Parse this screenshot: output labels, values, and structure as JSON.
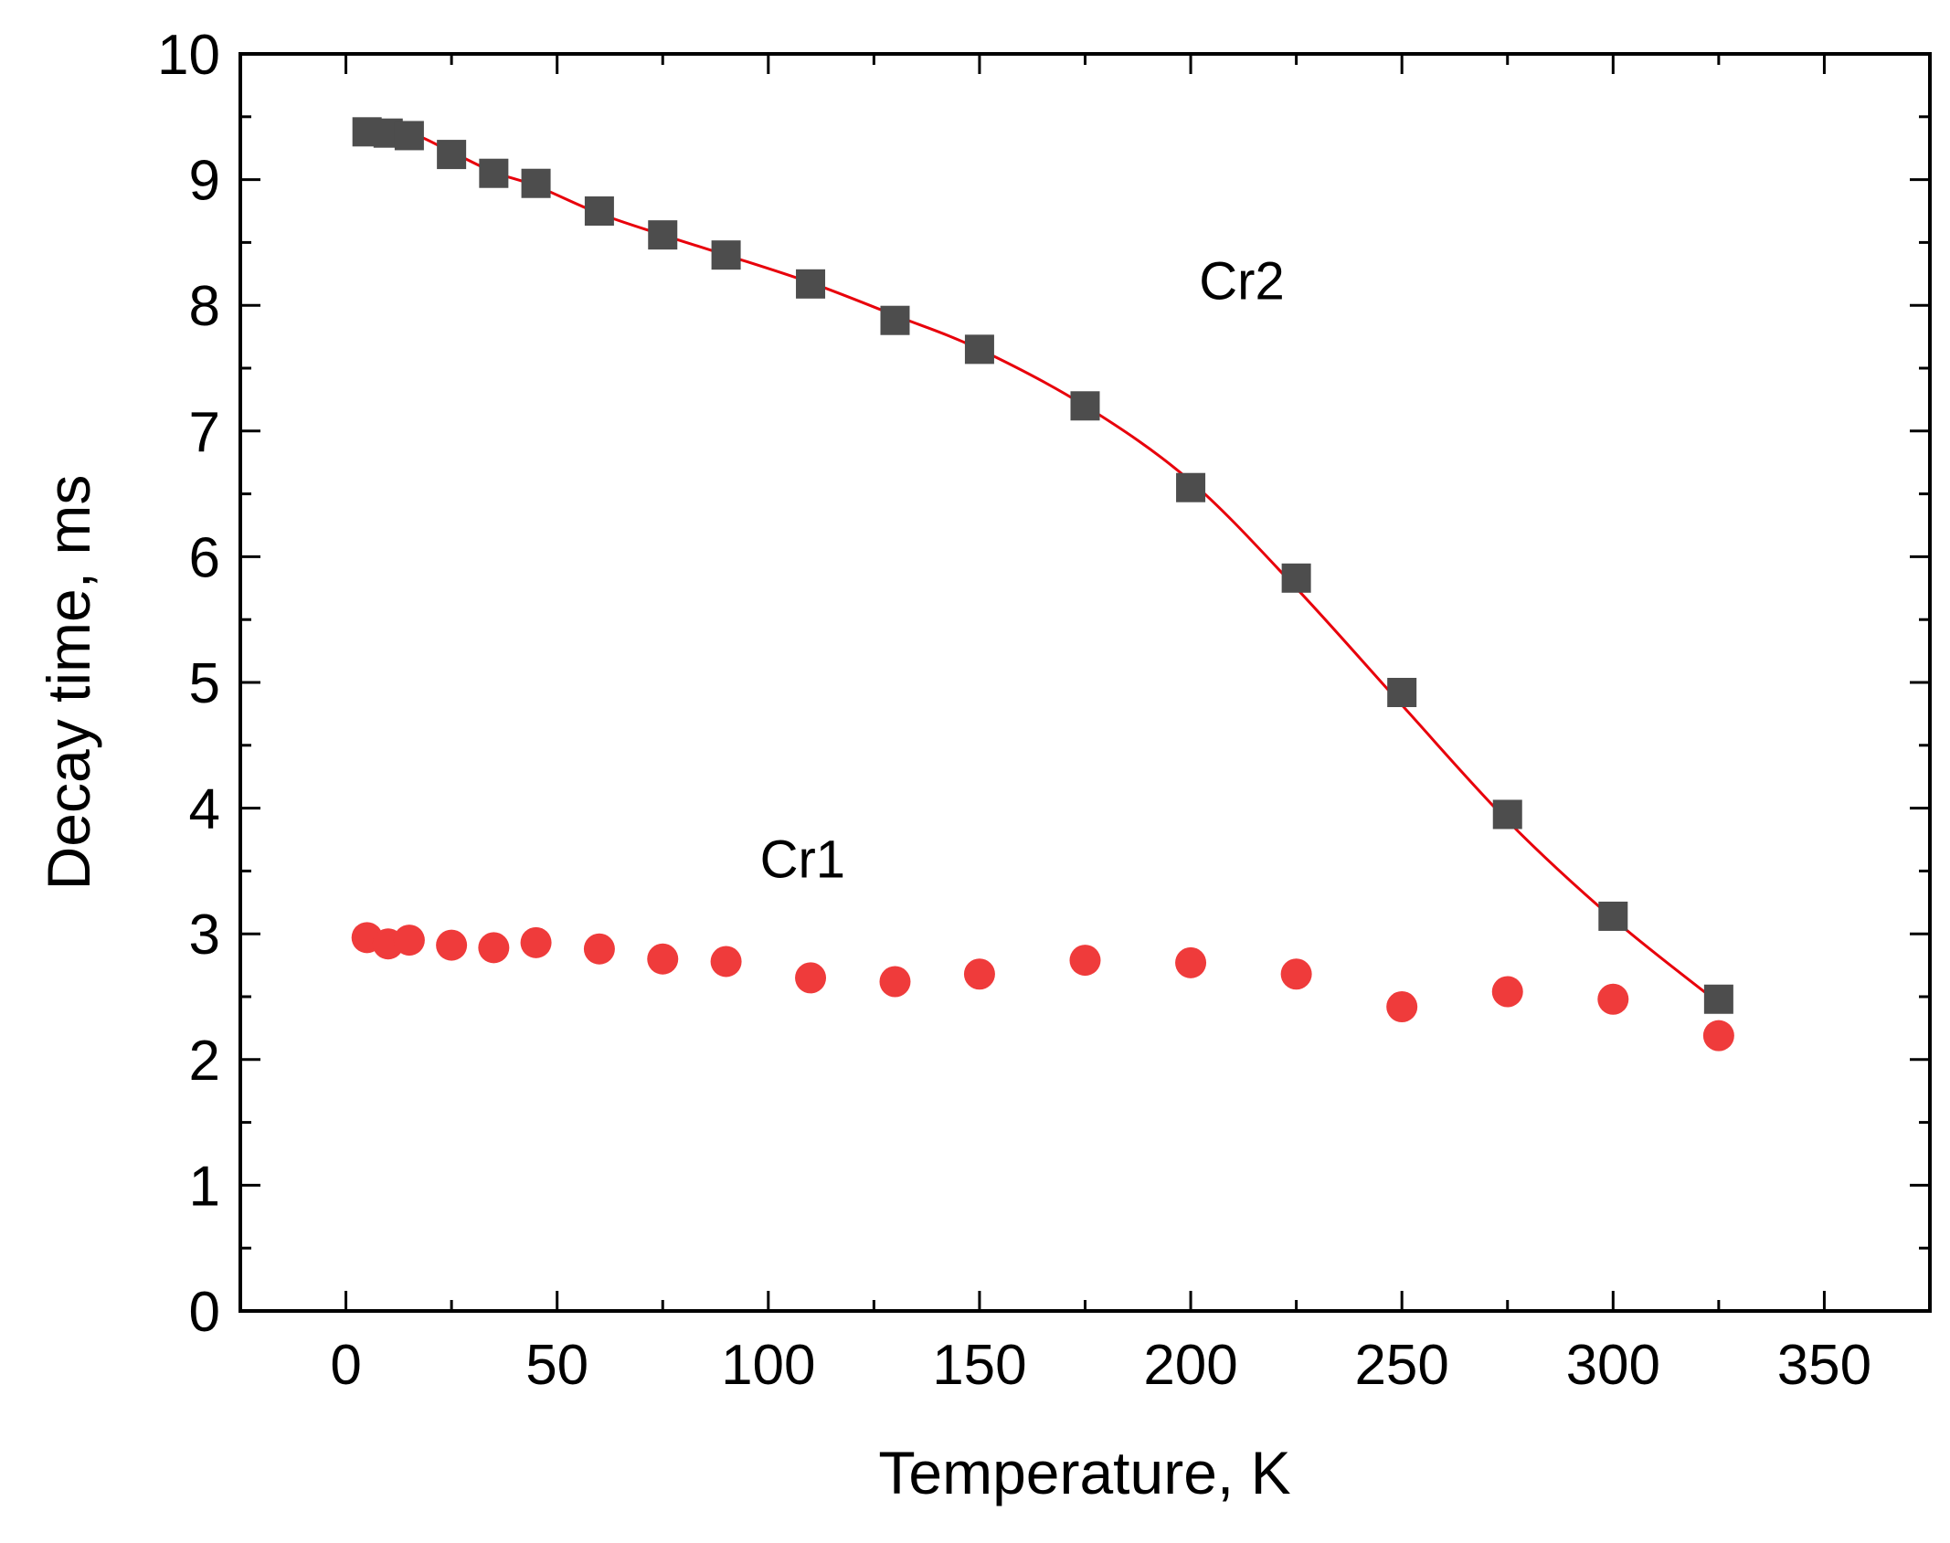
{
  "chart_data": {
    "type": "scatter",
    "title": "",
    "xlabel": "Temperature, K",
    "ylabel": "Decay time, ms",
    "xlim": [
      -25,
      375
    ],
    "ylim": [
      0,
      10
    ],
    "xticks": [
      0,
      50,
      100,
      150,
      200,
      250,
      300,
      350
    ],
    "yticks": [
      0,
      1,
      2,
      3,
      4,
      5,
      6,
      7,
      8,
      9,
      10
    ],
    "series": [
      {
        "name": "Cr2",
        "marker": "square",
        "color": "#4d4d4d",
        "x": [
          5,
          10,
          15,
          25,
          35,
          45,
          60,
          75,
          90,
          110,
          130,
          150,
          175,
          200,
          225,
          250,
          275,
          300,
          325
        ],
        "y": [
          9.38,
          9.37,
          9.35,
          9.2,
          9.05,
          8.97,
          8.75,
          8.56,
          8.4,
          8.17,
          7.88,
          7.65,
          7.2,
          6.55,
          5.83,
          4.92,
          3.95,
          3.14,
          2.48
        ]
      },
      {
        "name": "Cr2 fit",
        "marker": "line",
        "color": "#e8000b",
        "x": [
          5,
          15,
          25,
          35,
          45,
          60,
          75,
          90,
          110,
          130,
          150,
          175,
          200,
          225,
          250,
          275,
          300,
          325
        ],
        "y": [
          9.38,
          9.37,
          9.22,
          9.06,
          8.95,
          8.73,
          8.56,
          8.4,
          8.18,
          7.92,
          7.65,
          7.2,
          6.6,
          5.75,
          4.82,
          3.9,
          3.12,
          2.45
        ]
      },
      {
        "name": "Cr1",
        "marker": "circle",
        "color": "#ef3b3b",
        "x": [
          5,
          10,
          15,
          25,
          35,
          45,
          60,
          75,
          90,
          110,
          130,
          150,
          175,
          200,
          225,
          250,
          275,
          300,
          325
        ],
        "y": [
          2.97,
          2.92,
          2.95,
          2.91,
          2.89,
          2.93,
          2.88,
          2.8,
          2.78,
          2.65,
          2.62,
          2.68,
          2.79,
          2.77,
          2.68,
          2.42,
          2.54,
          2.48,
          2.19
        ]
      }
    ],
    "annotations": [
      {
        "text": "Cr2",
        "x": 202,
        "y": 8.05
      },
      {
        "text": "Cr1",
        "x": 98,
        "y": 3.45
      }
    ]
  }
}
